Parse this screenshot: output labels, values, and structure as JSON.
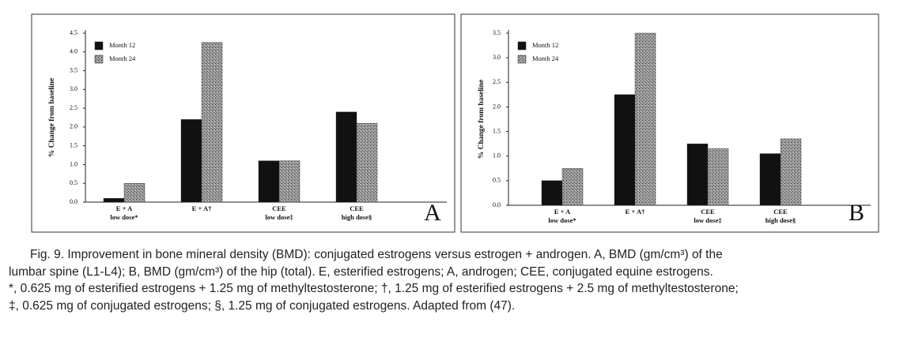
{
  "chart_data": [
    {
      "type": "bar",
      "panel_label": "A",
      "y_label": "% Change from baseline",
      "categories": [
        [
          "E + A",
          "low dose*"
        ],
        [
          "E + A†"
        ],
        [
          "CEE",
          "low dose‡"
        ],
        [
          "CEE",
          "high dose§"
        ]
      ],
      "series": [
        {
          "name": "Month 12",
          "color": "#111111",
          "values": [
            0.1,
            2.2,
            1.1,
            2.4
          ]
        },
        {
          "name": "Month 24",
          "color": "#9a9a9a",
          "values": [
            0.5,
            4.25,
            1.1,
            2.1
          ]
        }
      ],
      "ylim": [
        0,
        4.5
      ],
      "yticks": [
        {
          "value": 0,
          "label": "0.0"
        },
        0.5,
        {
          "value": 1,
          "label": "1.0"
        },
        1.5,
        {
          "value": 2,
          "label": "2.0"
        },
        2.5,
        {
          "value": 3,
          "label": "3.0"
        },
        3.5,
        {
          "value": 4,
          "label": "4.0"
        },
        4.5
      ]
    },
    {
      "type": "bar",
      "panel_label": "B",
      "y_label": "% Change from baseline",
      "categories": [
        [
          "E + A",
          "low dose*"
        ],
        [
          "E + A†"
        ],
        [
          "CEE",
          "low dose‡"
        ],
        [
          "CEE",
          "high dose§"
        ]
      ],
      "series": [
        {
          "name": "Month 12",
          "color": "#111111",
          "values": [
            0.5,
            2.25,
            1.25,
            1.05
          ]
        },
        {
          "name": "Month 24",
          "color": "#9a9a9a",
          "values": [
            0.75,
            3.5,
            1.15,
            1.35
          ]
        }
      ],
      "ylim": [
        0,
        3.5
      ],
      "yticks": [
        {
          "value": 0,
          "label": "0.0"
        },
        0.5,
        {
          "value": 1,
          "label": "1.0"
        },
        1.5,
        {
          "value": 2,
          "label": "2.0"
        },
        2.5,
        {
          "value": 3,
          "label": "3.0"
        },
        3.5
      ]
    }
  ],
  "caption": [
    "Fig. 9.   Improvement in bone mineral density (BMD): conjugated estrogens versus estrogen + androgen. A, BMD (gm/cm³) of the",
    "lumbar spine (L1-L4); B, BMD (gm/cm³) of the hip (total). E, esterified estrogens; A, androgen; CEE, conjugated equine estrogens.",
    "*, 0.625 mg of esterified estrogens + 1.25 mg of methyltestosterone; †, 1.25 mg of esterified estrogens + 2.5 mg of methyltestosterone;",
    "‡, 0.625 mg of conjugated estrogens; §, 1.25 mg of conjugated estrogens. Adapted from (47)."
  ]
}
